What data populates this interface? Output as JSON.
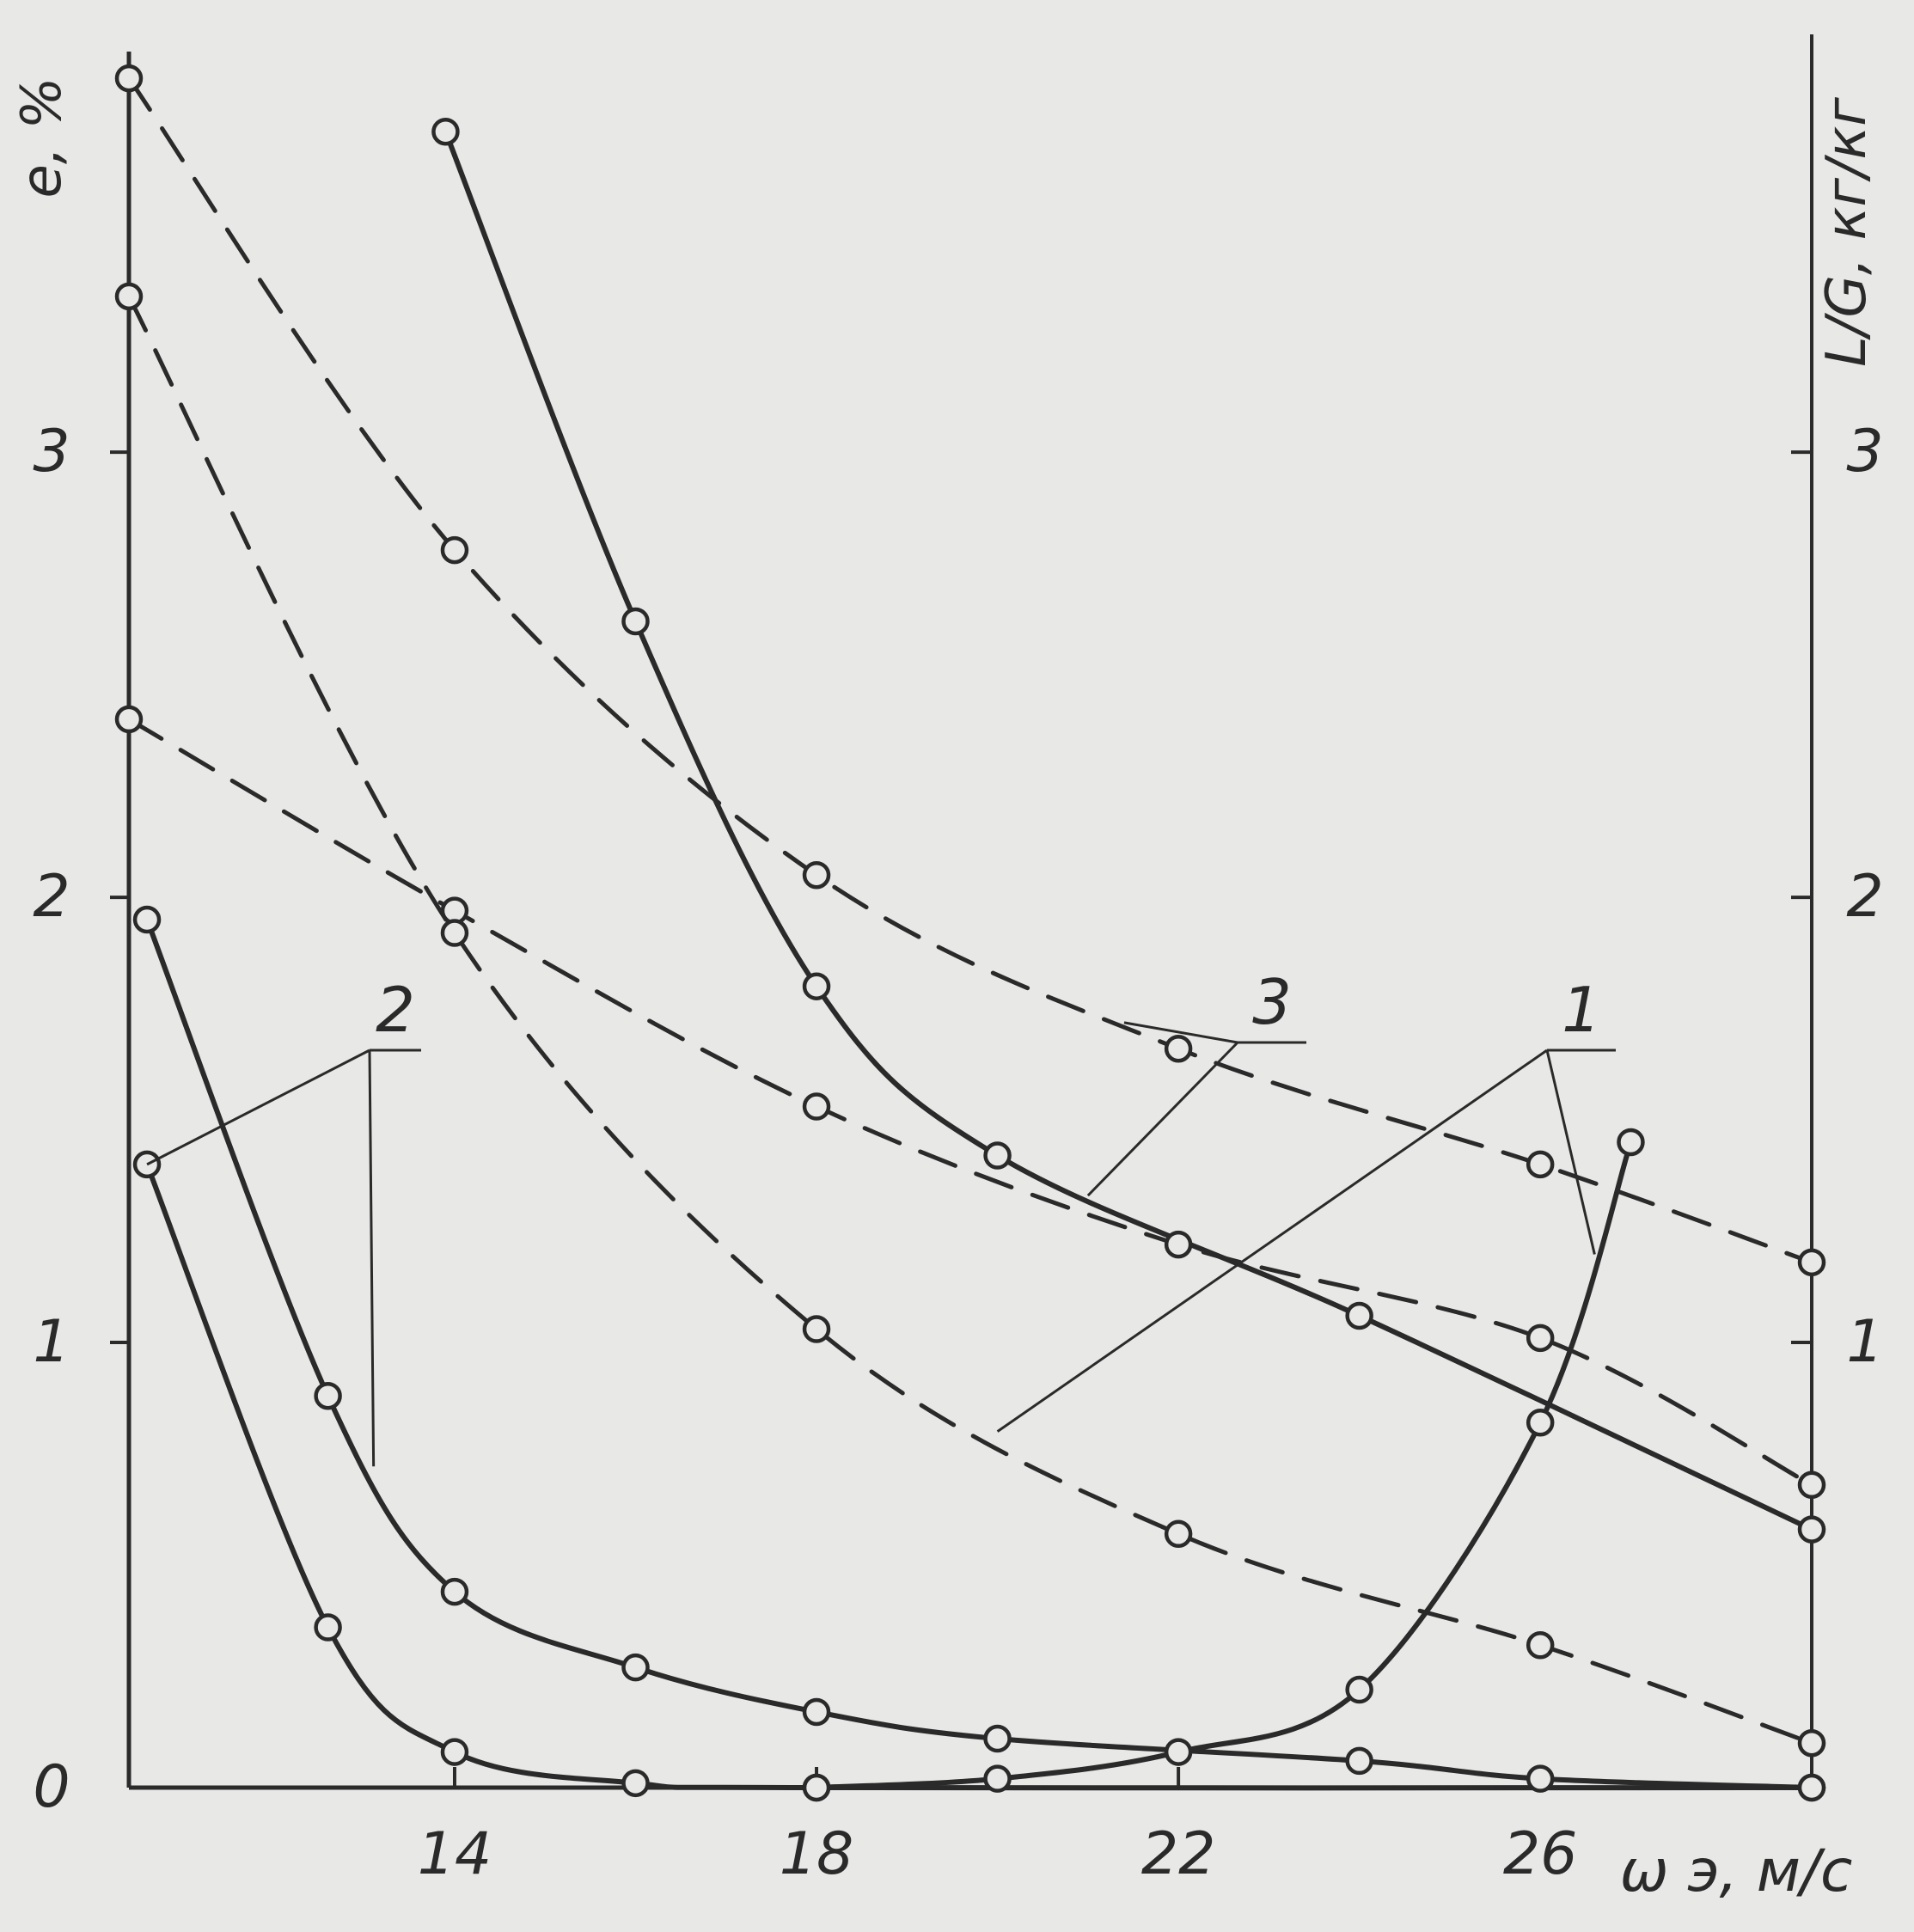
{
  "chart_data": {
    "type": "line",
    "xlabel": "ω э, м/с",
    "ylabel_left": "e, %",
    "ylabel_right": "L/G, кг/кг",
    "xlim": [
      10.4,
      29.0
    ],
    "ylim_left": [
      0,
      3.9
    ],
    "ylim_right": [
      0,
      3.9
    ],
    "x_ticks": [
      14,
      18,
      22,
      26
    ],
    "y_ticks_left": [
      0,
      1,
      2,
      3
    ],
    "y_ticks_right": [
      1,
      2,
      3
    ],
    "grid": false,
    "legend": "none",
    "colors": {
      "ink": "#2a2a2a",
      "paper": "#e8e8e6"
    },
    "series": [
      {
        "name": "1",
        "axis": "right",
        "style": "solid",
        "points": [
          [
            18.0,
            0.0
          ],
          [
            20.0,
            0.02
          ],
          [
            22.0,
            0.08
          ],
          [
            24.0,
            0.22
          ],
          [
            26.0,
            0.82
          ],
          [
            27.0,
            1.45
          ]
        ]
      },
      {
        "name": "3",
        "axis": "left",
        "style": "solid",
        "points": [
          [
            13.9,
            3.72
          ],
          [
            16.0,
            2.62
          ],
          [
            18.0,
            1.8
          ],
          [
            20.0,
            1.42
          ],
          [
            24.0,
            1.06
          ],
          [
            29.0,
            0.58
          ]
        ]
      },
      {
        "name": "2",
        "axis": "left",
        "style": "solid",
        "points": [
          [
            10.6,
            1.95
          ],
          [
            12.6,
            0.88
          ],
          [
            14.0,
            0.44
          ],
          [
            16.0,
            0.27
          ],
          [
            18.0,
            0.17
          ],
          [
            20.0,
            0.11
          ],
          [
            24.0,
            0.06
          ],
          [
            26.0,
            0.02
          ],
          [
            29.0,
            0.0
          ]
        ]
      },
      {
        "name": "2",
        "axis": "left",
        "style": "solid",
        "points": [
          [
            10.6,
            1.4
          ],
          [
            12.6,
            0.36
          ],
          [
            14.0,
            0.08
          ],
          [
            16.0,
            0.01
          ],
          [
            18.0,
            0.0
          ],
          [
            29.0,
            0.0
          ]
        ]
      },
      {
        "name": "3",
        "axis": "right",
        "style": "dashed",
        "points": [
          [
            10.4,
            3.84
          ],
          [
            14.0,
            2.78
          ],
          [
            18.0,
            2.05
          ],
          [
            22.0,
            1.66
          ],
          [
            26.0,
            1.4
          ],
          [
            29.0,
            1.18
          ]
        ]
      },
      {
        "name": "2",
        "axis": "right",
        "style": "dashed",
        "points": [
          [
            10.4,
            2.4
          ],
          [
            14.0,
            1.97
          ],
          [
            18.0,
            1.53
          ],
          [
            22.0,
            1.22
          ],
          [
            26.0,
            1.01
          ],
          [
            29.0,
            0.68
          ]
        ]
      },
      {
        "name": "1",
        "axis": "right",
        "style": "dashed",
        "points": [
          [
            10.4,
            3.35
          ],
          [
            14.0,
            1.92
          ],
          [
            18.0,
            1.03
          ],
          [
            22.0,
            0.57
          ],
          [
            26.0,
            0.32
          ],
          [
            29.0,
            0.1
          ]
        ]
      }
    ],
    "annotations": [
      {
        "text": "1",
        "target_series": [
          0,
          6
        ]
      },
      {
        "text": "2",
        "target_series": [
          2,
          3
        ]
      },
      {
        "text": "3",
        "target_series": [
          1,
          4
        ]
      }
    ]
  }
}
